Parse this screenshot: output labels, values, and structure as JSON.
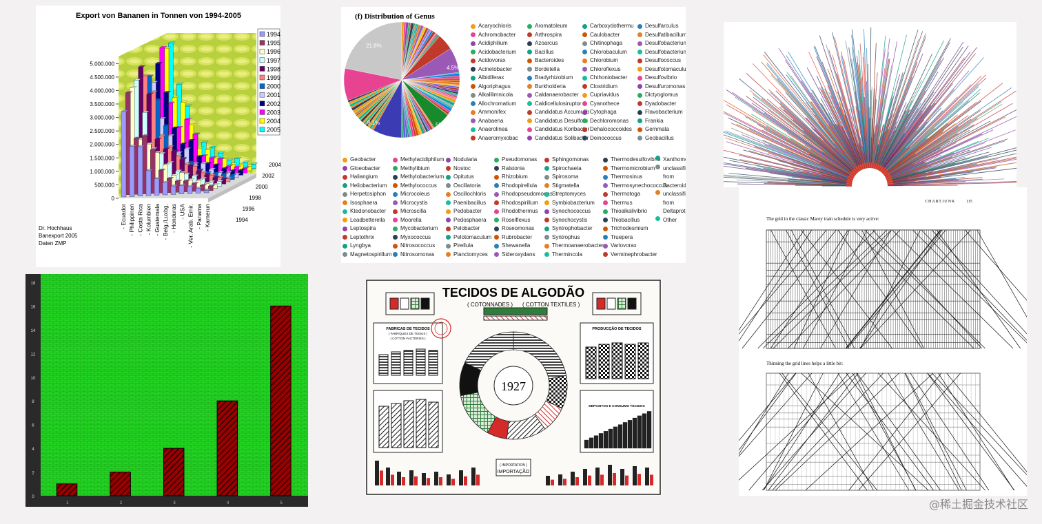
{
  "watermark": "@稀土掘金技术社区",
  "chart_data": [
    {
      "type": "bar",
      "title": "Export von Bananen in Tonnen von 1994-2005",
      "categories": [
        "Ecuador",
        "Philippinen",
        "Costa Rica",
        "Kolumbien",
        "Guatemala",
        "Belg./Luxbg.",
        "Honduras",
        "USA",
        "Ver. Arab. Emir.",
        "Panama",
        "Kamerun"
      ],
      "years": [
        "1994",
        "1995",
        "1996",
        "1997",
        "1998",
        "1999",
        "2000",
        "2001",
        "2002",
        "2003",
        "2004",
        "2005"
      ],
      "series_colors": [
        "#9a9aff",
        "#993366",
        "#ffffcc",
        "#ccffff",
        "#660066",
        "#ff8080",
        "#0066cc",
        "#ccccff",
        "#000080",
        "#ff00ff",
        "#ffff00",
        "#00ffff"
      ],
      "yticks": [
        "0",
        "500.000",
        "1.000.000",
        "1.500.000",
        "2.000.000",
        "2.500.000",
        "3.000.000",
        "3.500.000",
        "4.000.000",
        "4.500.000",
        "5.000.000"
      ],
      "depth_ticks": [
        "1994",
        "1996",
        "1998",
        "2000",
        "2002",
        "2004"
      ],
      "ylim": [
        0,
        5000000
      ],
      "values_ecuador": [
        3100000,
        3700000,
        3800000,
        4000000,
        4400000,
        4000000,
        3900000,
        3600000,
        4200000,
        4700000,
        4600000,
        4700000
      ],
      "footnote": [
        "Dr. Hochhaus",
        "Banexport 2005",
        "Daten ZMP"
      ]
    },
    {
      "type": "pie",
      "title": "(f) Distribution of Genus",
      "slice_labels": [
        {
          "label": "21.8%"
        },
        {
          "label": "4.5%"
        },
        {
          "label": "8.1%"
        },
        {
          "label": "5%"
        }
      ],
      "legend_top": [
        [
          "Acaryochloris",
          "Achromobacter",
          "Acidiphilium",
          "Acidobacterium",
          "Acidovorax",
          "Acinetobacter",
          "Albidiferax",
          "Algoriphagus",
          "Alkalilimnicola",
          "Allochromatium",
          "Ammonifex",
          "Anabaena",
          "Anaerolinea",
          "Anaeromyxobac"
        ],
        [
          "Aromatoleum",
          "Arthrospira",
          "Azoarcus",
          "Bacillus",
          "Bacteroides",
          "Bordetella",
          "Bradyrhizobium",
          "Burkholderia",
          "Caldanaerobacter",
          "Caldicellulosiruptor",
          "Candidatus Accumulib",
          "Candidatus Desulforu",
          "Candidatus Koribacter",
          "Candidatus Solibacter"
        ],
        [
          "Carboxydothermu",
          "Caulobacter",
          "Chitinophaga",
          "Chlorobaculum",
          "Chlorobium",
          "Chloroflexus",
          "Chthoniobacter",
          "Clostridium",
          "Cupriavidus",
          "Cyanothece",
          "Cytophaga",
          "Dechloromonas",
          "Dehalococcoides",
          "Deinococcus"
        ],
        [
          "Desulfarculus",
          "Desulfatibacillum",
          "Desulfobacterium",
          "Desulfobacterium",
          "Desulfococcus",
          "Desulfotomaculum",
          "Desulfovibrio",
          "Desulfuromonas",
          "Dictyoglomus",
          "Dyadobacter",
          "Flavobacterium",
          "Frankia",
          "Gemmata",
          "Geobacillus"
        ]
      ],
      "legend_bottom": [
        [
          "Geobacter",
          "Gloeobacter",
          "Haliangium",
          "Heliobacterium",
          "Herpetosiphon",
          "Isosphaera",
          "Ktedonobacter",
          "Leadbetterella",
          "Leptospira",
          "Leptothrix",
          "Lyngbya",
          "Magnetospirillum"
        ],
        [
          "Methylacidiphilum",
          "Methylibium",
          "Methylobacterium",
          "Methylococcus",
          "Microcoleus",
          "Microcystis",
          "Microscilla",
          "Moorella",
          "Mycobacterium",
          "Myxococcus",
          "Nitrosococcus",
          "Nitrosomonas"
        ],
        [
          "Nodularia",
          "Nostoc",
          "Opitutus",
          "Oscillatoria",
          "Oscillochloris",
          "Paenibacillus",
          "Pedobacter",
          "Pedosphaera",
          "Pelobacter",
          "Pelotomaculum",
          "Pirellula",
          "Planctomyces"
        ],
        [
          "Pseudomonas",
          "Ralstonia",
          "Rhizobium",
          "Rhodopirellula",
          "Rhodopseudomonas",
          "Rhodospirillum",
          "Rhodothermus",
          "Roseiflexus",
          "Roseomonas",
          "Rubrobacter",
          "Shewanella",
          "Sideroxydans"
        ],
        [
          "Sphingomonas",
          "Spirochaeta",
          "Spirosoma",
          "Stigmatella",
          "Streptomyces",
          "Symbiobacterium",
          "Synechococcus",
          "Synechocystis",
          "Syntrophobacter",
          "Syntrophus",
          "Thermoanaerobacter",
          "Thermincola"
        ],
        [
          "Thermodesulfovibrio",
          "Thermomicrobium",
          "Thermosinus",
          "Thermosynechococcus",
          "Thermotoga",
          "Thermus",
          "Thioalkalivibrio",
          "Thiobacillus",
          "Trichodesmium",
          "Truepera",
          "Variovorax",
          "Verminephrobacter"
        ],
        [
          "Xanthomonas",
          "unclassified from Bacteroidetes",
          "unclassified from Deltaproteo",
          "Other"
        ]
      ],
      "legend_colors": [
        "#f39c12",
        "#e84393",
        "#8e44ad",
        "#27ae60",
        "#c0392b",
        "#2c3e50",
        "#16a085",
        "#d35400",
        "#7f8c8d",
        "#2980b9",
        "#e67e22",
        "#9b59b6",
        "#1abc9c",
        "#c0392b"
      ]
    },
    {
      "type": "bar",
      "categories": [
        "1",
        "2",
        "3",
        "4",
        "5"
      ],
      "values": [
        1,
        2,
        4,
        8,
        16
      ],
      "yticks": [
        "0",
        "2",
        "4",
        "6",
        "8",
        "10",
        "12",
        "14",
        "16",
        "18"
      ],
      "ylim": [
        0,
        18
      ]
    }
  ],
  "cotton": {
    "title": "TECIDOS DE ALGODÃO",
    "subtitle_left": "( COTONNADES )",
    "subtitle_right": "( COTTON TEXTILES )",
    "year": "1927",
    "box_factories": "FABRICAS DE TECIDOS",
    "box_factories_sub": "( FABRIQUES DE TISSUS )",
    "box_factories_en": "( COTTON FACTORIES )",
    "box_production": "PRODUCÇÃO DE TECIDOS",
    "box_deposits": "DEPOSITOS E CONSUMO TECIDOS",
    "import_label": "( IMPORTATION )",
    "import_title": "IMPORTAÇÃO"
  },
  "marey": {
    "header_right": "CHARTJUNK",
    "page": "115",
    "caption1": "The grid in the classic Marey train schedule is very active:",
    "caption2": "Thinning the grid lines helps a little bit:"
  }
}
